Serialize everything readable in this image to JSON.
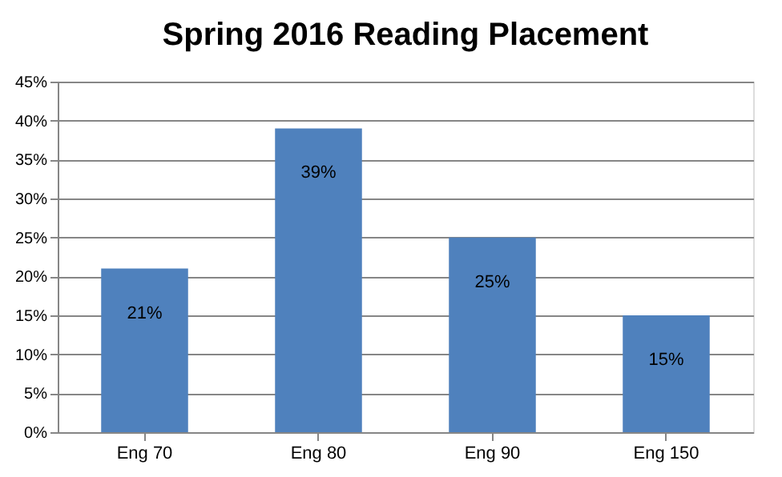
{
  "chart_data": {
    "type": "bar",
    "title": "Spring 2016 Reading Placement",
    "categories": [
      "Eng 70",
      "Eng 80",
      "Eng 90",
      "Eng 150"
    ],
    "values": [
      21,
      39,
      25,
      15
    ],
    "color": "#4f81bd",
    "value_labels": [
      "21%",
      "39%",
      "25%",
      "15%"
    ],
    "ylim": [
      0,
      45
    ],
    "yticks": [
      {
        "value": 0,
        "label": "0%"
      },
      {
        "value": 5,
        "label": "5%"
      },
      {
        "value": 10,
        "label": "10%"
      },
      {
        "value": 15,
        "label": "15%"
      },
      {
        "value": 20,
        "label": "20%"
      },
      {
        "value": 25,
        "label": "25%"
      },
      {
        "value": 30,
        "label": "30%"
      },
      {
        "value": 35,
        "label": "35%"
      },
      {
        "value": 40,
        "label": "40%"
      },
      {
        "value": 45,
        "label": "45%"
      }
    ],
    "grid": "y"
  }
}
